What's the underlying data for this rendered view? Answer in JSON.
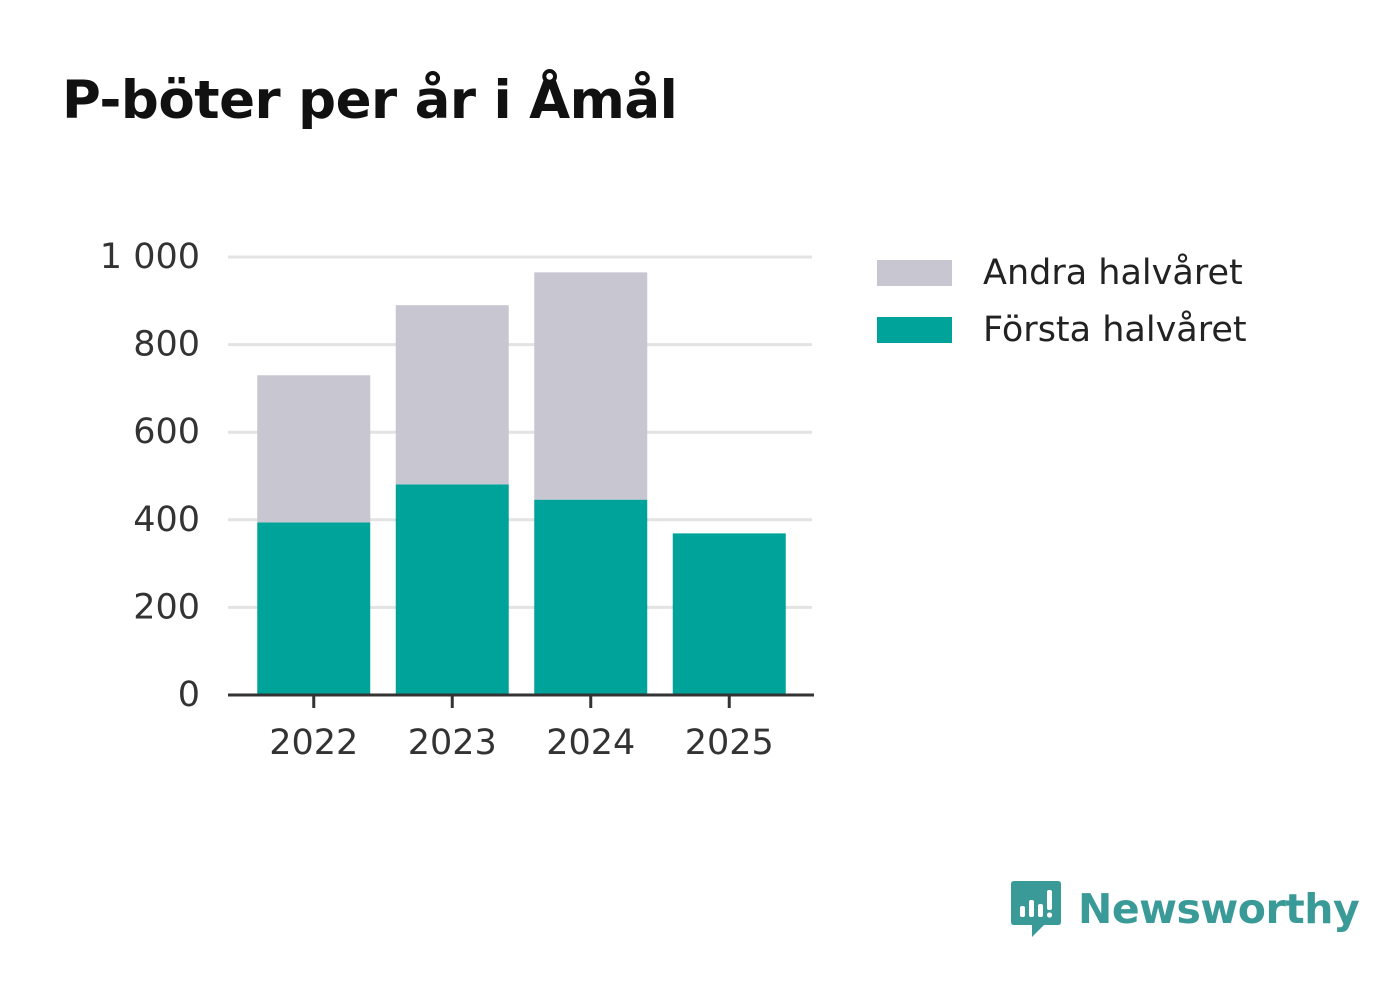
{
  "chart_data": {
    "type": "bar",
    "stacked": true,
    "title": "P-böter per år i Åmål",
    "categories": [
      "2022",
      "2023",
      "2024",
      "2025"
    ],
    "series": [
      {
        "name": "Första halvåret",
        "color": "#00a39a",
        "values": [
          394,
          481,
          446,
          369
        ]
      },
      {
        "name": "Andra halvåret",
        "color": "#c8c7d1",
        "values": [
          336,
          409,
          519,
          0
        ]
      }
    ],
    "yticks": [
      {
        "value": 0,
        "label": "0"
      },
      {
        "value": 200,
        "label": "200"
      },
      {
        "value": 400,
        "label": "400"
      },
      {
        "value": 600,
        "label": "600"
      },
      {
        "value": 800,
        "label": "800"
      },
      {
        "value": 1000,
        "label": "1 000"
      }
    ],
    "ylim": [
      0,
      1000
    ],
    "xlabel": "",
    "ylabel": "",
    "legend_position": "right"
  },
  "legend": {
    "items": [
      {
        "label": "Andra halvåret",
        "color": "#c8c7d1"
      },
      {
        "label": "Första halvåret",
        "color": "#00a39a"
      }
    ]
  },
  "brand": {
    "name": "Newsworthy",
    "icon": "newsworthy-logo-icon",
    "color": "#3a9a97"
  }
}
